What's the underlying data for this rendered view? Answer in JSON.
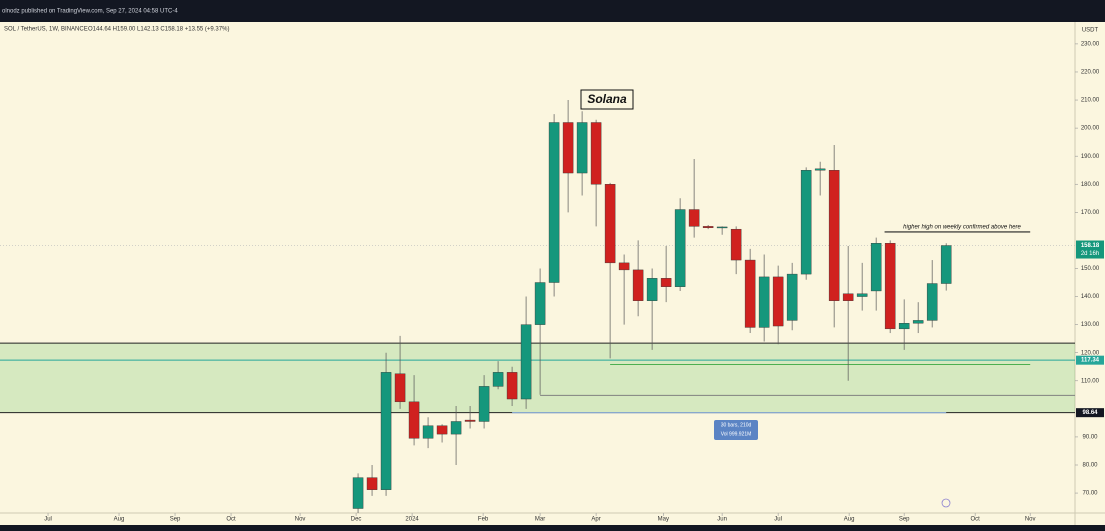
{
  "chart_data": {
    "type": "candlestick",
    "header": "olnodz published on TradingView.com, Sep 27, 2024 04:58 UTC-4",
    "title": "SOL / TetherUS, 1W, BINANCE",
    "ohlc_legend": "O144.64 H159.00 L142.13 C158.18 +13.55 (+9.37%)",
    "y_unit": "USDT",
    "up_color": "#15977c",
    "down_color": "#d0211f",
    "x": [
      25,
      26,
      27,
      28,
      29,
      30,
      31,
      32,
      33,
      34,
      35,
      36,
      37,
      38,
      39,
      40,
      41,
      42,
      43,
      44,
      45,
      46,
      47,
      48,
      49,
      50,
      51,
      52,
      53,
      54,
      55,
      56,
      57,
      58,
      59,
      60,
      61,
      62,
      63,
      64,
      65,
      66,
      67
    ],
    "open": [
      64.5,
      75.5,
      71.2,
      112.5,
      102.5,
      89.5,
      94,
      91,
      96,
      95.5,
      108,
      113,
      103.5,
      130,
      145,
      202,
      184,
      202,
      180,
      152,
      149.5,
      138.5,
      146.5,
      143.5,
      171,
      165,
      164.5,
      164,
      153,
      129,
      147,
      131.5,
      148,
      185,
      185,
      141,
      140,
      142,
      159,
      128.5,
      130.5,
      131.5,
      144.64
    ],
    "high": [
      77,
      80,
      120,
      126,
      112,
      97,
      94.5,
      101,
      101,
      112,
      117,
      115,
      140,
      150,
      205,
      210,
      206,
      203,
      180.5,
      155,
      160,
      150,
      158,
      175,
      189,
      165.5,
      165,
      165,
      157,
      155,
      151,
      152,
      186,
      188,
      194,
      158,
      152,
      161,
      160,
      139,
      138,
      153,
      159
    ],
    "low": [
      62,
      69,
      69,
      100,
      87,
      86,
      88,
      80,
      93,
      93,
      107,
      101,
      100,
      105,
      140,
      170,
      176,
      165,
      118,
      130,
      133,
      121,
      138,
      142,
      161,
      164,
      162,
      148,
      127,
      124,
      123,
      128,
      146,
      176,
      129,
      110,
      135,
      135,
      127,
      121,
      127,
      129,
      142.13
    ],
    "close": [
      75.5,
      71.2,
      113,
      102.5,
      89.5,
      94,
      91,
      95.5,
      95.5,
      108,
      113,
      103.5,
      130,
      145,
      202,
      184,
      202,
      180,
      152,
      149.5,
      138.5,
      146.5,
      143.5,
      171,
      165,
      164.5,
      164.8,
      153,
      129,
      147,
      129.5,
      148,
      185,
      185.5,
      138.5,
      138.5,
      141,
      159,
      128.5,
      130.5,
      131.5,
      144.64,
      158.18
    ],
    "xlim": [
      -0.57,
      76.2
    ],
    "ylim": [
      62.9,
      237.8
    ],
    "xticks": [
      {
        "value": 2.86,
        "label": "Jul"
      },
      {
        "value": 7.93,
        "label": "Aug"
      },
      {
        "value": 11.93,
        "label": "Sep"
      },
      {
        "value": 15.93,
        "label": "Oct"
      },
      {
        "value": 20.86,
        "label": "Nov"
      },
      {
        "value": 24.86,
        "label": "Dec"
      },
      {
        "value": 28.86,
        "label": "2024"
      },
      {
        "value": 33.93,
        "label": "Feb"
      },
      {
        "value": 38,
        "label": "Mar"
      },
      {
        "value": 42,
        "label": "Apr"
      },
      {
        "value": 46.8,
        "label": "May"
      },
      {
        "value": 51,
        "label": "Jun"
      },
      {
        "value": 55,
        "label": "Jul"
      },
      {
        "value": 60.07,
        "label": "Aug"
      },
      {
        "value": 64,
        "label": "Sep"
      },
      {
        "value": 69.07,
        "label": "Oct"
      },
      {
        "value": 73,
        "label": "Nov"
      }
    ],
    "yticks": [
      {
        "value": 70,
        "label": "70.00"
      },
      {
        "value": 80,
        "label": "80.00"
      },
      {
        "value": 90,
        "label": "90.00"
      },
      {
        "value": 110,
        "label": "110.00"
      },
      {
        "value": 120,
        "label": "120.00"
      },
      {
        "value": 130,
        "label": "130.00"
      },
      {
        "value": 140,
        "label": "140.00"
      },
      {
        "value": 150,
        "label": "150.00"
      },
      {
        "value": 170,
        "label": "170.00"
      },
      {
        "value": 180,
        "label": "180.00"
      },
      {
        "value": 190,
        "label": "190.00"
      },
      {
        "value": 200,
        "label": "200.00"
      },
      {
        "value": 210,
        "label": "210.00"
      },
      {
        "value": 220,
        "label": "220.00"
      },
      {
        "value": 230,
        "label": "230.00"
      }
    ],
    "zone": {
      "low": 98.64,
      "high": 123.4,
      "color": "rgba(120,200,110,0.28)"
    },
    "levels": [
      {
        "value": 123.4,
        "color": "#222222"
      },
      {
        "value": 98.64,
        "color": "#222222",
        "tag": 98.64,
        "tag_color": "#131722"
      },
      {
        "value": 117.34,
        "color": "#26a69a",
        "tag": 117.34,
        "tag_color": "#26a69a"
      }
    ],
    "segments": [
      {
        "value": 115.8,
        "from": 43,
        "to": 73,
        "color": "#4caf50"
      },
      {
        "value": 104.8,
        "from": 38,
        "to": 76.2,
        "color": "#808080"
      },
      {
        "value": 98.64,
        "from": 36,
        "to": 67,
        "color": "#90b4e0"
      },
      {
        "value": 163,
        "from": 62.6,
        "to": 73,
        "color": "#222222"
      }
    ],
    "last_price": {
      "value": 158.18,
      "countdown": "2d 16h",
      "color": "#15977c"
    },
    "annotations": [
      "Solana",
      "higher high on weekly confirmed above here"
    ],
    "measure": [
      "30 bars, 210d",
      "Vol 999.921M"
    ]
  }
}
